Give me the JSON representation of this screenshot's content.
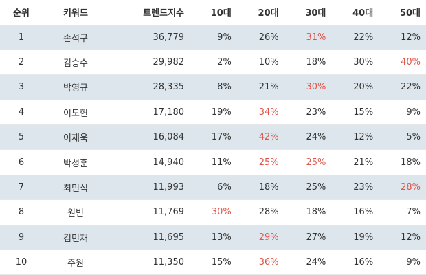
{
  "table": {
    "headers": {
      "rank": "순위",
      "keyword": "키워드",
      "trend_index": "트렌드지수",
      "age10": "10대",
      "age20": "20대",
      "age30": "30대",
      "age40": "40대",
      "age50": "50대"
    },
    "highlight_color": "#e05548",
    "stripe_color": "#dde6ec",
    "rows": [
      {
        "rank": "1",
        "keyword": "손석구",
        "trend_index": "36,779",
        "age10": "9%",
        "age20": "26%",
        "age30": "31%",
        "age40": "22%",
        "age50": "12%",
        "highlight": "age30"
      },
      {
        "rank": "2",
        "keyword": "김승수",
        "trend_index": "29,982",
        "age10": "2%",
        "age20": "10%",
        "age30": "18%",
        "age40": "30%",
        "age50": "40%",
        "highlight": "age50"
      },
      {
        "rank": "3",
        "keyword": "박영규",
        "trend_index": "28,335",
        "age10": "8%",
        "age20": "21%",
        "age30": "30%",
        "age40": "20%",
        "age50": "22%",
        "highlight": "age30"
      },
      {
        "rank": "4",
        "keyword": "이도현",
        "trend_index": "17,180",
        "age10": "19%",
        "age20": "34%",
        "age30": "23%",
        "age40": "15%",
        "age50": "9%",
        "highlight": "age20"
      },
      {
        "rank": "5",
        "keyword": "이재욱",
        "trend_index": "16,084",
        "age10": "17%",
        "age20": "42%",
        "age30": "24%",
        "age40": "12%",
        "age50": "5%",
        "highlight": "age20"
      },
      {
        "rank": "6",
        "keyword": "박성훈",
        "trend_index": "14,940",
        "age10": "11%",
        "age20": "25%",
        "age30": "25%",
        "age40": "21%",
        "age50": "18%",
        "highlight": "age20,age30"
      },
      {
        "rank": "7",
        "keyword": "최민식",
        "trend_index": "11,993",
        "age10": "6%",
        "age20": "18%",
        "age30": "25%",
        "age40": "23%",
        "age50": "28%",
        "highlight": "age50"
      },
      {
        "rank": "8",
        "keyword": "원빈",
        "trend_index": "11,769",
        "age10": "30%",
        "age20": "28%",
        "age30": "18%",
        "age40": "16%",
        "age50": "7%",
        "highlight": "age10"
      },
      {
        "rank": "9",
        "keyword": "김민재",
        "trend_index": "11,695",
        "age10": "13%",
        "age20": "29%",
        "age30": "27%",
        "age40": "19%",
        "age50": "12%",
        "highlight": "age20"
      },
      {
        "rank": "10",
        "keyword": "주원",
        "trend_index": "11,350",
        "age10": "15%",
        "age20": "36%",
        "age30": "24%",
        "age40": "16%",
        "age50": "9%",
        "highlight": "age20"
      }
    ]
  }
}
